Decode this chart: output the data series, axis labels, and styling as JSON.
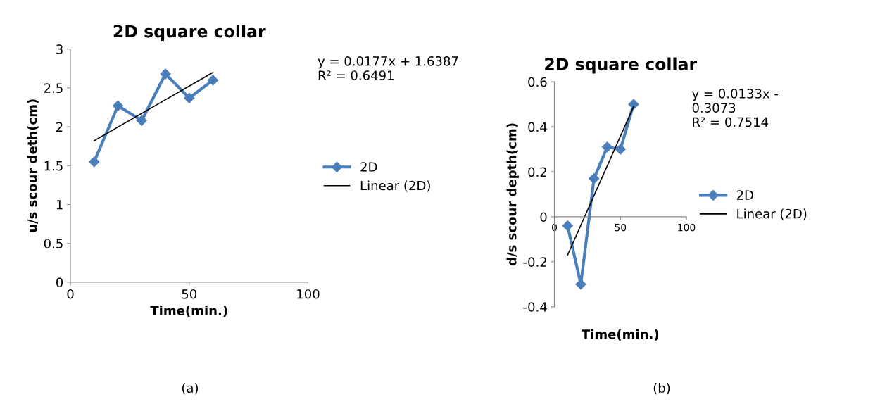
{
  "chart_data": [
    {
      "type": "line",
      "title": "2D square collar",
      "xlabel": "Time(min.)",
      "ylabel": "u/s scour deth(cm)",
      "series": [
        {
          "name": "2D",
          "color": "#4a7ebb",
          "marker": "diamond",
          "x": [
            10,
            20,
            30,
            40,
            50,
            60
          ],
          "values": [
            1.55,
            2.27,
            2.08,
            2.68,
            2.37,
            2.6
          ]
        },
        {
          "name": "Linear (2D)",
          "color": "#000000",
          "marker": "none",
          "x": [
            10,
            60
          ],
          "values": [
            1.82,
            2.7
          ]
        }
      ],
      "xlim": [
        0,
        100
      ],
      "xticks": [
        0,
        50,
        100
      ],
      "ylim": [
        0,
        3
      ],
      "yticks": [
        0,
        0.5,
        1,
        1.5,
        2,
        2.5,
        3
      ],
      "grid": false,
      "legend": "right",
      "annotations": [
        "y = 0.0177x + 1.6387\nR² = 0.6491",
        "(a)"
      ]
    },
    {
      "type": "line",
      "title": "2D square collar",
      "xlabel": "Time(min.)",
      "ylabel": "d/s scour depth(cm)",
      "series": [
        {
          "name": "2D",
          "color": "#4a7ebb",
          "marker": "diamond",
          "x": [
            10,
            20,
            30,
            40,
            50,
            60
          ],
          "values": [
            -0.04,
            -0.3,
            0.17,
            0.31,
            0.3,
            0.5
          ]
        },
        {
          "name": "Linear (2D)",
          "color": "#000000",
          "marker": "none",
          "x": [
            10,
            60
          ],
          "values": [
            -0.17,
            0.49
          ]
        }
      ],
      "xlim": [
        0,
        100
      ],
      "xticks": [
        0,
        50,
        100
      ],
      "ylim": [
        -0.4,
        0.6
      ],
      "yticks": [
        -0.4,
        -0.2,
        0,
        0.2,
        0.4,
        0.6
      ],
      "grid": false,
      "legend": "right",
      "annotations": [
        "y = 0.0133x -\n0.3073\nR² = 0.7514",
        "(b)"
      ]
    }
  ]
}
